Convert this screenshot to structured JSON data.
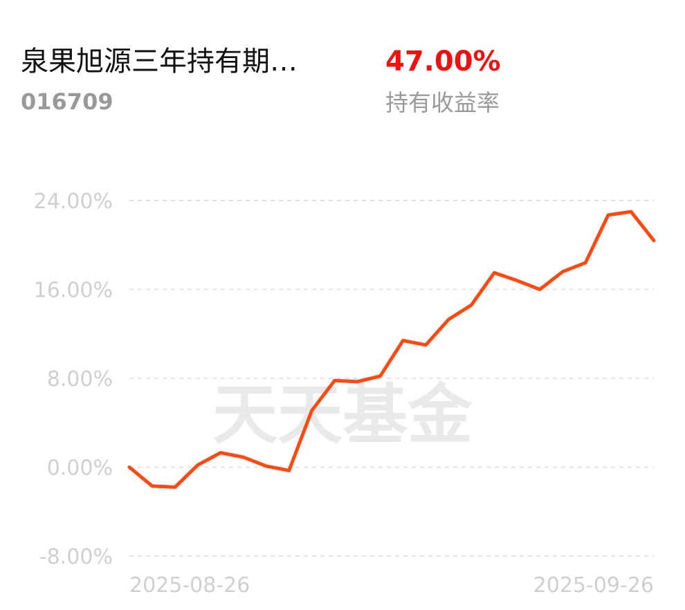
{
  "header": {
    "title": "泉果旭源三年持有期…",
    "code": "016709",
    "return_value": "47.00%",
    "return_label": "持有收益率"
  },
  "chart_data": {
    "type": "line",
    "watermark": "天天基金",
    "categories": [
      "2025-08-26",
      null,
      null,
      null,
      null,
      null,
      null,
      null,
      null,
      null,
      null,
      null,
      null,
      null,
      null,
      null,
      null,
      null,
      null,
      null,
      null,
      null,
      null,
      "2025-09-26"
    ],
    "series": [
      {
        "color": "#ff4a12",
        "values": [
          0,
          -1.7,
          -1.8,
          0.2,
          1.3,
          0.9,
          0.1,
          -0.3,
          5.1,
          7.8,
          7.7,
          8.2,
          11.4,
          11.0,
          13.3,
          14.6,
          17.5,
          16.8,
          16.0,
          17.6,
          18.4,
          22.7,
          23.0,
          20.4
        ]
      }
    ],
    "ylim": [
      -8,
      24
    ],
    "yticks": [
      {
        "value": -8,
        "label": "-8.00%"
      },
      {
        "value": 0,
        "label": "0.00%"
      },
      {
        "value": 8,
        "label": "8.00%"
      },
      {
        "value": 16,
        "label": "16.00%"
      },
      {
        "value": 24,
        "label": "24.00%"
      }
    ],
    "grid": true
  }
}
